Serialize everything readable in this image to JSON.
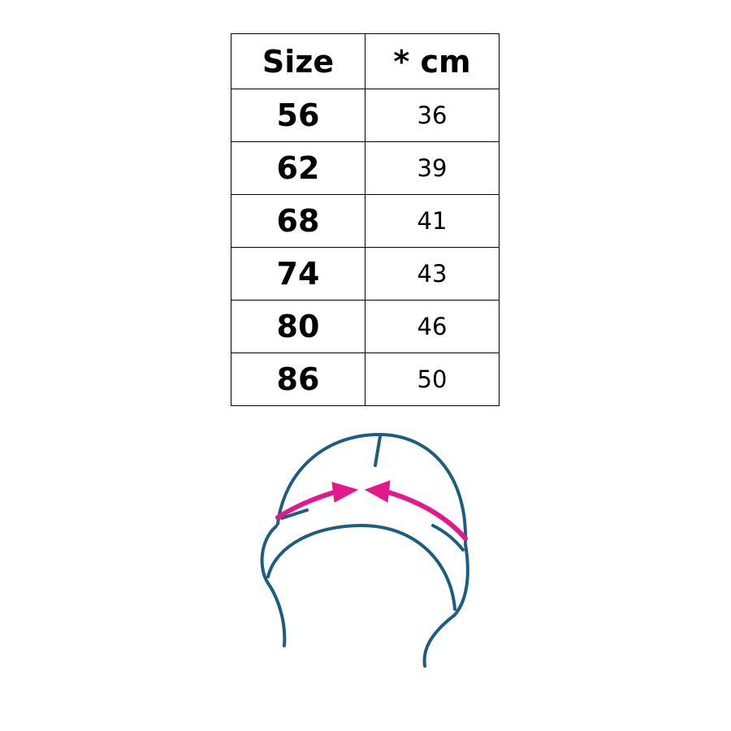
{
  "table": {
    "headers": [
      "Size",
      "* cm"
    ],
    "rows": [
      [
        "56",
        "36"
      ],
      [
        "62",
        "39"
      ],
      [
        "68",
        "41"
      ],
      [
        "74",
        "43"
      ],
      [
        "80",
        "46"
      ],
      [
        "86",
        "50"
      ]
    ]
  },
  "illustration": {
    "icon": "hat-head-circumference-icon",
    "colors": {
      "outline": "#1c5d80",
      "arrow": "#e5178c"
    }
  }
}
